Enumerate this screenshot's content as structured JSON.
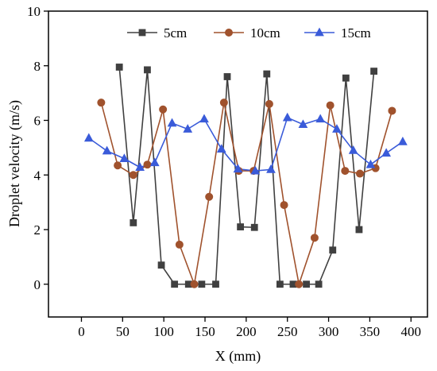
{
  "chart_data": {
    "type": "line",
    "xlabel": "X (mm)",
    "ylabel": "Droplet velocity (m/s)",
    "xlim": [
      -40,
      420
    ],
    "ylim": [
      -1.2,
      10
    ],
    "xticks": [
      0,
      50,
      100,
      150,
      200,
      250,
      300,
      350,
      400
    ],
    "yticks": [
      0,
      2,
      4,
      6,
      8,
      10
    ],
    "grid": false,
    "legend_position": "top",
    "series": [
      {
        "name": "5cm",
        "color": "#404040",
        "marker": "square",
        "points": [
          [
            46,
            7.95
          ],
          [
            63,
            2.25
          ],
          [
            80,
            7.85
          ],
          [
            97,
            0.7
          ],
          [
            113,
            0.0
          ],
          [
            130,
            0.0
          ],
          [
            146,
            0.0
          ],
          [
            163,
            0.0
          ],
          [
            177,
            7.6
          ],
          [
            193,
            2.1
          ],
          [
            210,
            2.08
          ],
          [
            225,
            7.7
          ],
          [
            241,
            0.0
          ],
          [
            257,
            0.0
          ],
          [
            273,
            0.0
          ],
          [
            288,
            0.0
          ],
          [
            305,
            1.25
          ],
          [
            321,
            7.55
          ],
          [
            337,
            2.0
          ],
          [
            355,
            7.8
          ]
        ]
      },
      {
        "name": "10cm",
        "color": "#a0522d",
        "marker": "circle",
        "points": [
          [
            24,
            6.65
          ],
          [
            44,
            4.35
          ],
          [
            63,
            4.0
          ],
          [
            80,
            4.38
          ],
          [
            99,
            6.4
          ],
          [
            119,
            1.45
          ],
          [
            137,
            0.0
          ],
          [
            155,
            3.2
          ],
          [
            173,
            6.65
          ],
          [
            191,
            4.15
          ],
          [
            209,
            4.15
          ],
          [
            228,
            6.6
          ],
          [
            246,
            2.9
          ],
          [
            264,
            0.0
          ],
          [
            283,
            1.7
          ],
          [
            302,
            6.55
          ],
          [
            320,
            4.15
          ],
          [
            338,
            4.05
          ],
          [
            357,
            4.25
          ],
          [
            377,
            6.35
          ]
        ]
      },
      {
        "name": "15cm",
        "color": "#3a5bd9",
        "marker": "triangle",
        "points": [
          [
            9,
            5.35
          ],
          [
            31,
            4.88
          ],
          [
            52,
            4.6
          ],
          [
            71,
            4.28
          ],
          [
            89,
            4.45
          ],
          [
            110,
            5.9
          ],
          [
            129,
            5.68
          ],
          [
            149,
            6.05
          ],
          [
            170,
            4.95
          ],
          [
            190,
            4.22
          ],
          [
            211,
            4.15
          ],
          [
            230,
            4.2
          ],
          [
            250,
            6.1
          ],
          [
            269,
            5.85
          ],
          [
            290,
            6.05
          ],
          [
            310,
            5.68
          ],
          [
            330,
            4.9
          ],
          [
            351,
            4.38
          ],
          [
            370,
            4.8
          ],
          [
            390,
            5.22
          ]
        ]
      }
    ]
  }
}
